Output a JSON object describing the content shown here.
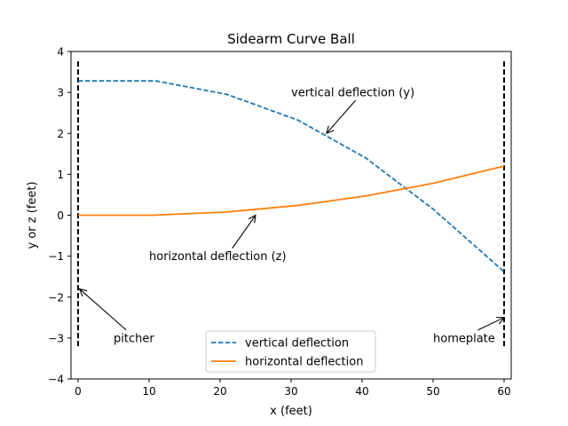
{
  "chart_data": {
    "type": "line",
    "title": "Sidearm Curve Ball",
    "xlabel": "x (feet)",
    "ylabel": "y or z (feet)",
    "xlim": [
      -1,
      61
    ],
    "ylim": [
      -4,
      4
    ],
    "xticks": [
      0,
      10,
      20,
      30,
      40,
      50,
      60
    ],
    "yticks": [
      -4,
      -3,
      -2,
      -1,
      0,
      1,
      2,
      3,
      4
    ],
    "xtick_labels": [
      "0",
      "10",
      "20",
      "30",
      "40",
      "50",
      "60"
    ],
    "ytick_labels": [
      "−4",
      "−3",
      "−2",
      "−1",
      "0",
      "1",
      "2",
      "3",
      "4"
    ],
    "grid": false,
    "legend_position": "bottom-center",
    "series": [
      {
        "name": "vertical deflection",
        "style": "dashed",
        "color": "#1f77b4",
        "x": [
          0,
          11,
          21,
          31,
          40.5,
          50,
          60
        ],
        "y": [
          3.28,
          3.28,
          2.95,
          2.32,
          1.4,
          0.15,
          -1.38
        ]
      },
      {
        "name": "horizontal deflection",
        "style": "solid",
        "color": "#ff7f0e",
        "x": [
          0,
          10.5,
          21,
          31,
          40.5,
          50,
          60
        ],
        "y": [
          0,
          0,
          0.08,
          0.24,
          0.47,
          0.78,
          1.2
        ]
      }
    ],
    "vlines": [
      {
        "x": 0,
        "ymin": -3.2,
        "ymax": 3.8,
        "style": "dashed",
        "color": "#000000"
      },
      {
        "x": 60,
        "ymin": -3.2,
        "ymax": 3.8,
        "style": "dashed",
        "color": "#000000"
      }
    ],
    "annotations": [
      {
        "text": "vertical deflection (y)",
        "text_x": 30,
        "text_y": 3.0,
        "target_x": 35,
        "target_y": 2.0
      },
      {
        "text": "horizontal deflection (z)",
        "text_x": 10,
        "text_y": -1.0,
        "target_x": 25,
        "target_y": 0.0
      },
      {
        "text": "pitcher",
        "text_x": 5,
        "text_y": -3.0,
        "target_x": 0.2,
        "target_y": -1.8
      },
      {
        "text": "homeplate",
        "text_x": 50,
        "text_y": -3.0,
        "target_x": 60,
        "target_y": -2.5
      }
    ]
  }
}
